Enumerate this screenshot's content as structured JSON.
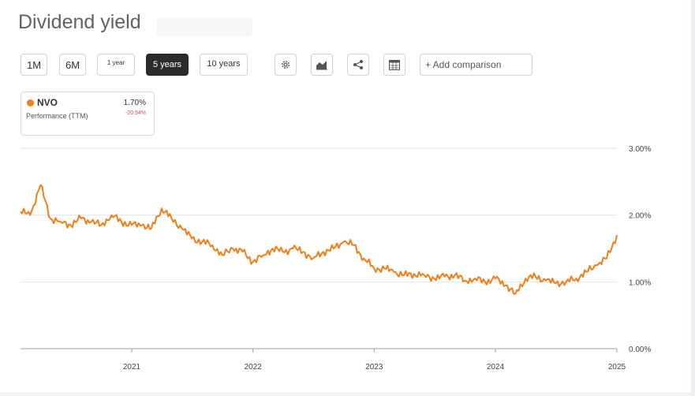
{
  "header": {
    "title": "Dividend yield"
  },
  "ranges": [
    {
      "label": "1M",
      "active": false
    },
    {
      "label": "6M",
      "active": false
    },
    {
      "label": "1 year",
      "active": false
    },
    {
      "label": "5 years",
      "active": true
    },
    {
      "label": "10 years",
      "active": false
    }
  ],
  "toolbar": {
    "icons": [
      "gear-icon",
      "chart-type-icon",
      "share-icon",
      "table-icon"
    ],
    "compare_label": "+ Add comparison"
  },
  "legend": {
    "ticker": "NVO",
    "subtitle": "Performance (TTM)",
    "value": "1.70%",
    "change": "-20.94%",
    "color": "#f07f1a"
  },
  "chart_data": {
    "type": "line",
    "ylim": [
      0,
      3
    ],
    "yticks": [
      "0.00%",
      "1.00%",
      "2.00%",
      "3.00%"
    ],
    "xticks": [
      "2021",
      "2022",
      "2023",
      "2024",
      "2025"
    ],
    "grid": true,
    "series": [
      {
        "color": "#f07f1a",
        "x": [
          "2020-02",
          "2020-03",
          "2020-04",
          "2020-05",
          "2020-06",
          "2020-07",
          "2020-08",
          "2020-09",
          "2020-10",
          "2020-11",
          "2020-12",
          "2021-01",
          "2021-02",
          "2021-03",
          "2021-04",
          "2021-05",
          "2021-06",
          "2021-07",
          "2021-08",
          "2021-09",
          "2021-10",
          "2021-11",
          "2021-12",
          "2022-01",
          "2022-02",
          "2022-03",
          "2022-04",
          "2022-05",
          "2022-06",
          "2022-07",
          "2022-08",
          "2022-09",
          "2022-10",
          "2022-11",
          "2022-12",
          "2023-01",
          "2023-02",
          "2023-03",
          "2023-04",
          "2023-05",
          "2023-06",
          "2023-07",
          "2023-08",
          "2023-09",
          "2023-10",
          "2023-11",
          "2023-12",
          "2024-01",
          "2024-02",
          "2024-03",
          "2024-04",
          "2024-05",
          "2024-06",
          "2024-07",
          "2024-08",
          "2024-09",
          "2024-10",
          "2024-11",
          "2024-12",
          "2025-01"
        ],
        "values": [
          2.05,
          2.0,
          2.45,
          1.95,
          1.9,
          1.85,
          1.95,
          1.9,
          1.85,
          2.0,
          1.9,
          1.85,
          1.85,
          1.8,
          2.1,
          1.95,
          1.8,
          1.65,
          1.6,
          1.55,
          1.4,
          1.5,
          1.45,
          1.3,
          1.4,
          1.5,
          1.45,
          1.5,
          1.45,
          1.35,
          1.45,
          1.5,
          1.6,
          1.55,
          1.35,
          1.2,
          1.2,
          1.15,
          1.1,
          1.12,
          1.1,
          1.05,
          1.08,
          1.1,
          1.02,
          1.05,
          1.0,
          1.05,
          0.95,
          0.82,
          1.05,
          1.08,
          1.02,
          0.98,
          1.0,
          1.05,
          1.15,
          1.25,
          1.35,
          1.7
        ]
      }
    ]
  }
}
